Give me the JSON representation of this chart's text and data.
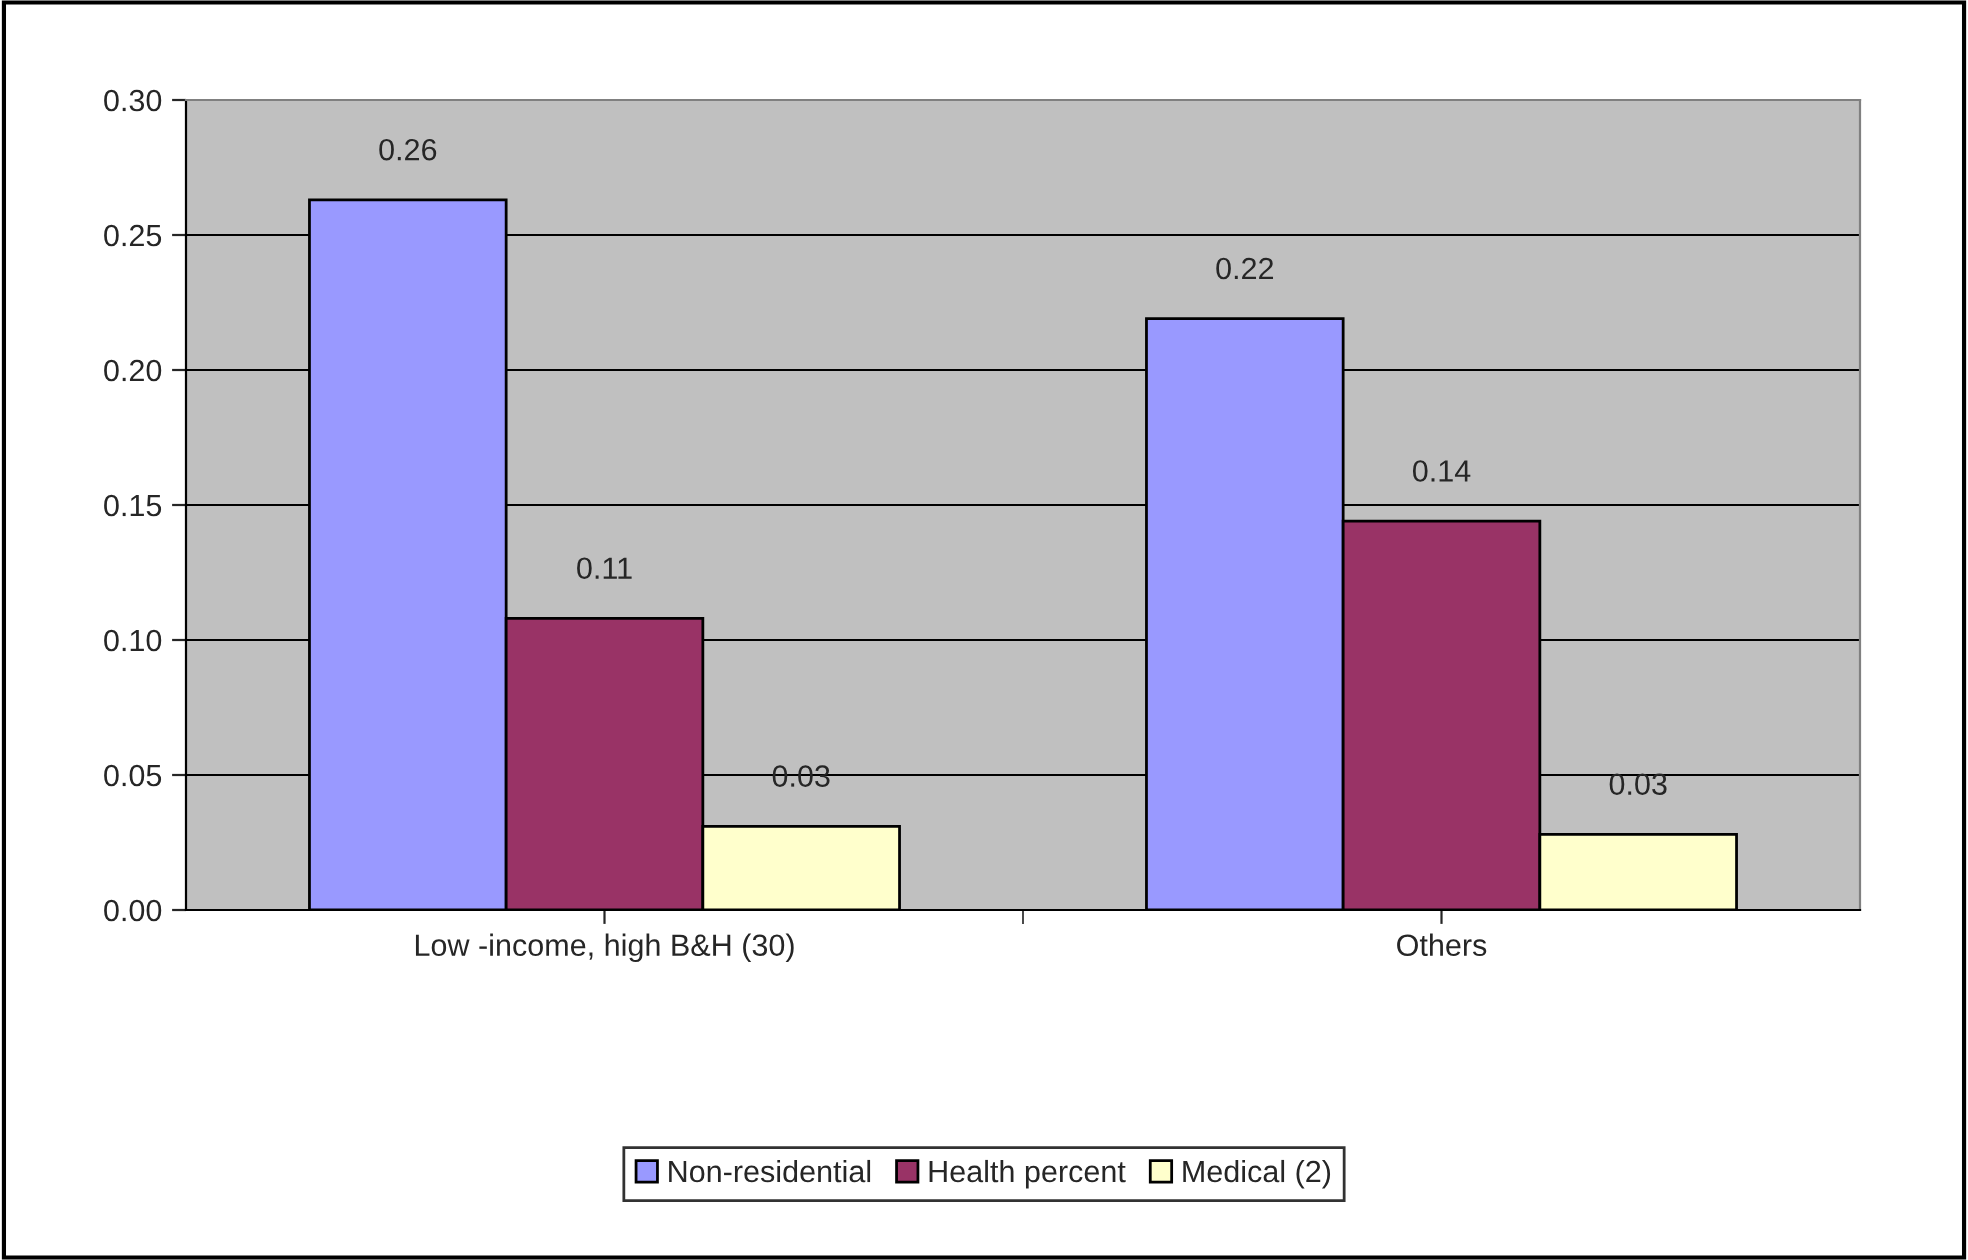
{
  "chart_data": {
    "type": "bar",
    "categories": [
      "Low -income, high B&H (30)",
      "Others"
    ],
    "series": [
      {
        "name": "Non-residential",
        "color": "#9999ff",
        "values": [
          0.263,
          0.219
        ],
        "value_labels": [
          "0.26",
          "0.22"
        ]
      },
      {
        "name": "Health percent",
        "color": "#993366",
        "values": [
          0.108,
          0.144
        ],
        "value_labels": [
          "0.11",
          "0.14"
        ]
      },
      {
        "name": "Medical (2)",
        "color": "#ffffcc",
        "values": [
          0.031,
          0.028
        ],
        "value_labels": [
          "0.03",
          "0.03"
        ]
      }
    ],
    "ylim": [
      0,
      0.3
    ],
    "yticks": [
      {
        "value": 0,
        "label": "0.00"
      },
      {
        "value": 0.05,
        "label": "0.05"
      },
      {
        "value": 0.1,
        "label": "0.10"
      },
      {
        "value": 0.15,
        "label": "0.15"
      },
      {
        "value": 0.2,
        "label": "0.20"
      },
      {
        "value": 0.25,
        "label": "0.25"
      },
      {
        "value": 0.3,
        "label": "0.30"
      }
    ],
    "grid": "y",
    "legend": "bottom"
  }
}
